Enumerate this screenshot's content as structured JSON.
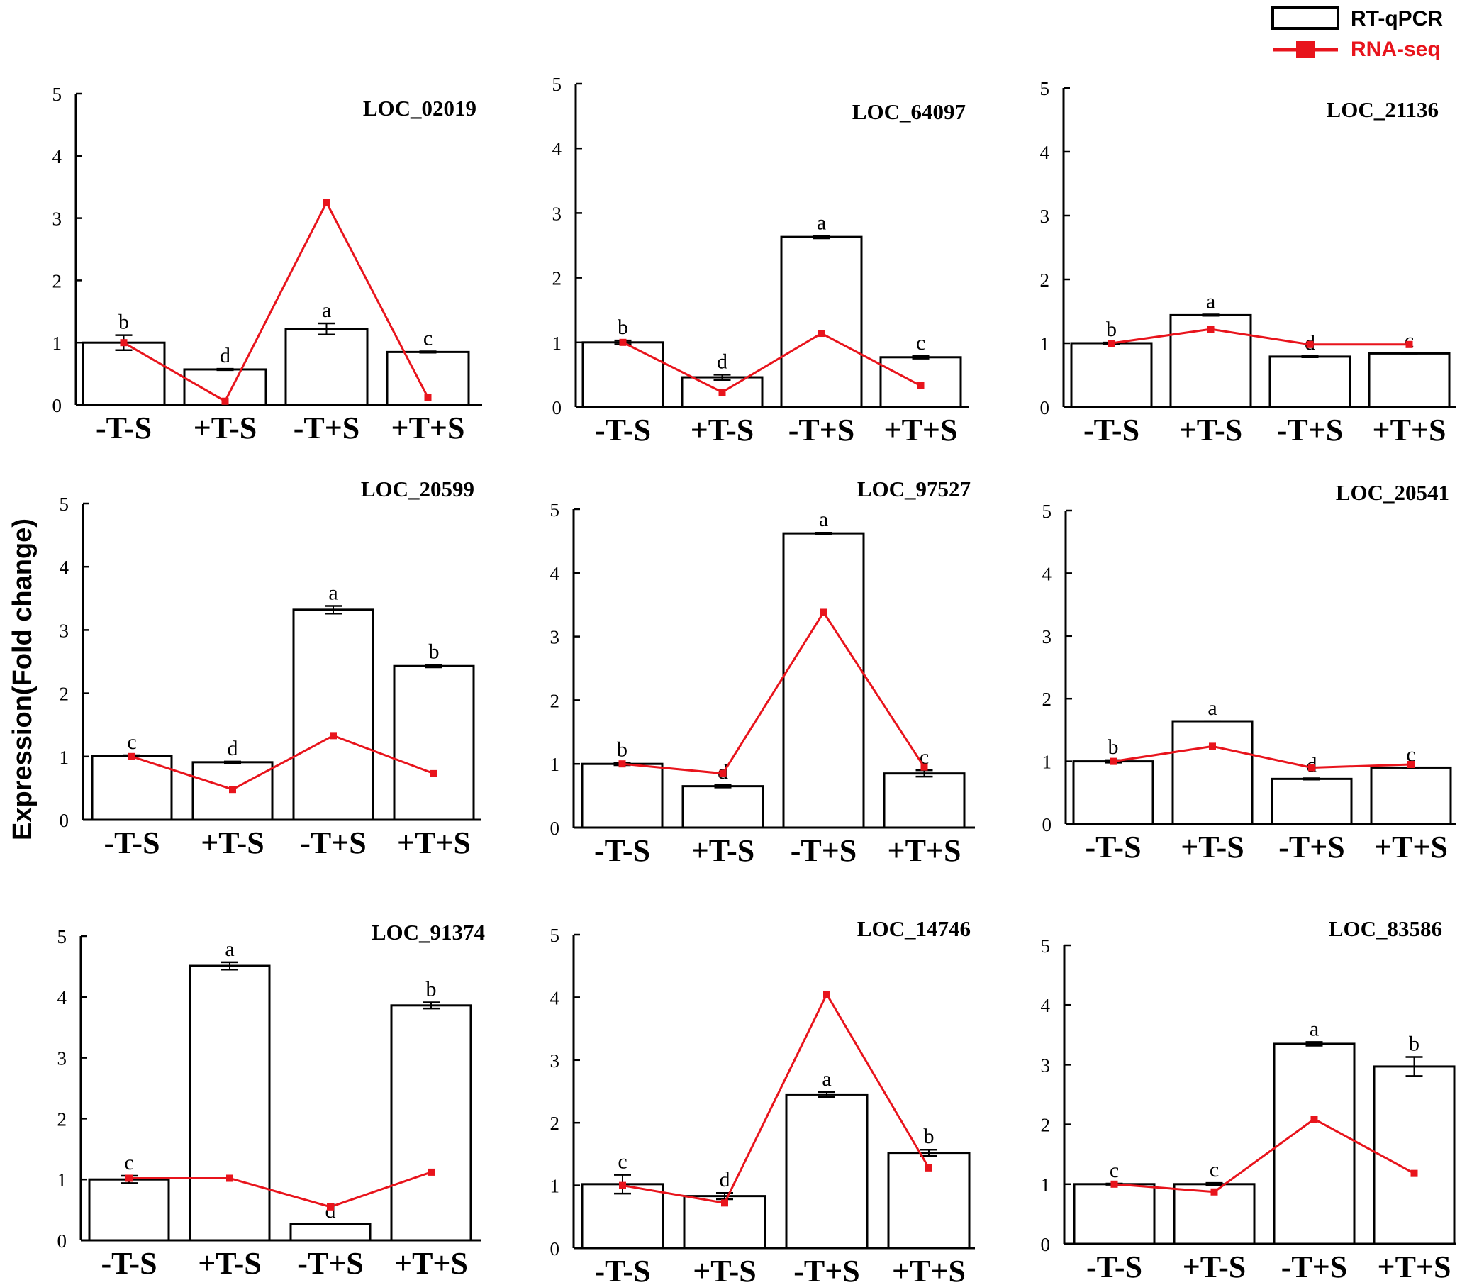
{
  "y_axis_label": "Expression(Fold change)",
  "legend": {
    "bar_label": "RT-qPCR",
    "line_label": "RNA-seq",
    "line_color": "#e8141c",
    "bar_color": "#000000"
  },
  "chart_data": [
    {
      "type": "bar",
      "title": "LOC_02019",
      "categories": [
        "-T-S",
        "+T-S",
        "-T+S",
        "+T+S"
      ],
      "series": [
        {
          "name": "RT-qPCR",
          "values": [
            1.0,
            0.57,
            1.22,
            0.85
          ],
          "errors": [
            0.12,
            0.01,
            0.09,
            0.01
          ],
          "labels": [
            "b",
            "d",
            "a",
            "c"
          ]
        },
        {
          "name": "RNA-seq",
          "values": [
            1.0,
            0.06,
            3.25,
            0.12
          ]
        }
      ],
      "ylim": [
        0,
        5
      ],
      "yticks": [
        0,
        1,
        2,
        3,
        4,
        5
      ]
    },
    {
      "type": "bar",
      "title": "LOC_64097",
      "categories": [
        "-T-S",
        "+T-S",
        "-T+S",
        "+T+S"
      ],
      "series": [
        {
          "name": "RT-qPCR",
          "values": [
            1.0,
            0.46,
            2.63,
            0.77
          ],
          "errors": [
            0.03,
            0.04,
            0.02,
            0.02
          ],
          "labels": [
            "b",
            "d",
            "a",
            "c"
          ]
        },
        {
          "name": "RNA-seq",
          "values": [
            1.0,
            0.23,
            1.14,
            0.33
          ]
        }
      ],
      "ylim": [
        0,
        5
      ],
      "yticks": [
        0,
        1,
        2,
        3,
        4,
        5
      ]
    },
    {
      "type": "bar",
      "title": "LOC_21136",
      "categories": [
        "-T-S",
        "+T-S",
        "-T+S",
        "+T+S"
      ],
      "series": [
        {
          "name": "RT-qPCR",
          "values": [
            1.0,
            1.44,
            0.79,
            0.84
          ],
          "errors": [
            0.01,
            0.01,
            0.01,
            0.0
          ],
          "labels": [
            "b",
            "a",
            "d",
            "c"
          ]
        },
        {
          "name": "RNA-seq",
          "values": [
            1.0,
            1.22,
            0.98,
            0.98
          ]
        }
      ],
      "ylim": [
        0,
        5
      ],
      "yticks": [
        0,
        1,
        2,
        3,
        4,
        5
      ]
    },
    {
      "type": "bar",
      "title": "LOC_20599",
      "categories": [
        "-T-S",
        "+T-S",
        "-T+S",
        "+T+S"
      ],
      "series": [
        {
          "name": "RT-qPCR",
          "values": [
            1.01,
            0.91,
            3.32,
            2.43
          ],
          "errors": [
            0.01,
            0.01,
            0.06,
            0.02
          ],
          "labels": [
            "c",
            "d",
            "a",
            "b"
          ]
        },
        {
          "name": "RNA-seq",
          "values": [
            1.0,
            0.48,
            1.33,
            0.73
          ]
        }
      ],
      "ylim": [
        0,
        5
      ],
      "yticks": [
        0,
        1,
        2,
        3,
        4,
        5
      ]
    },
    {
      "type": "bar",
      "title": "LOC_97527",
      "categories": [
        "-T-S",
        "+T-S",
        "-T+S",
        "+T+S"
      ],
      "series": [
        {
          "name": "RT-qPCR",
          "values": [
            1.0,
            0.65,
            4.62,
            0.85
          ],
          "errors": [
            0.02,
            0.02,
            0.01,
            0.05
          ],
          "labels": [
            "b",
            "d",
            "a",
            "c"
          ]
        },
        {
          "name": "RNA-seq",
          "values": [
            1.0,
            0.85,
            3.38,
            0.95
          ]
        }
      ],
      "ylim": [
        0,
        5
      ],
      "yticks": [
        0,
        1,
        2,
        3,
        4,
        5
      ]
    },
    {
      "type": "bar",
      "title": "LOC_20541",
      "categories": [
        "-T-S",
        "+T-S",
        "-T+S",
        "+T+S"
      ],
      "series": [
        {
          "name": "RT-qPCR",
          "values": [
            1.0,
            1.64,
            0.72,
            0.9
          ],
          "errors": [
            0.02,
            0.0,
            0.01,
            0.0
          ],
          "labels": [
            "b",
            "a",
            "d",
            "c"
          ]
        },
        {
          "name": "RNA-seq",
          "values": [
            1.0,
            1.24,
            0.9,
            0.95
          ]
        }
      ],
      "ylim": [
        0,
        5
      ],
      "yticks": [
        0,
        1,
        2,
        3,
        4,
        5
      ]
    },
    {
      "type": "bar",
      "title": "LOC_91374",
      "categories": [
        "-T-S",
        "+T-S",
        "-T+S",
        "+T+S"
      ],
      "series": [
        {
          "name": "RT-qPCR",
          "values": [
            1.0,
            4.51,
            0.27,
            3.86
          ],
          "errors": [
            0.06,
            0.06,
            0.0,
            0.05
          ],
          "labels": [
            "c",
            "a",
            "d",
            "b"
          ]
        },
        {
          "name": "RNA-seq",
          "values": [
            1.02,
            1.02,
            0.55,
            1.12
          ]
        }
      ],
      "ylim": [
        0,
        5
      ],
      "yticks": [
        0,
        1,
        2,
        3,
        4,
        5
      ]
    },
    {
      "type": "bar",
      "title": "LOC_14746",
      "categories": [
        "-T-S",
        "+T-S",
        "-T+S",
        "+T+S"
      ],
      "series": [
        {
          "name": "RT-qPCR",
          "values": [
            1.02,
            0.83,
            2.45,
            1.52
          ],
          "errors": [
            0.15,
            0.05,
            0.04,
            0.05
          ],
          "labels": [
            "c",
            "d",
            "a",
            "b"
          ]
        },
        {
          "name": "RNA-seq",
          "values": [
            1.0,
            0.72,
            4.05,
            1.28
          ]
        }
      ],
      "ylim": [
        0,
        5
      ],
      "yticks": [
        0,
        1,
        2,
        3,
        4,
        5
      ]
    },
    {
      "type": "bar",
      "title": "LOC_83586",
      "categories": [
        "-T-S",
        "+T-S",
        "-T+S",
        "+T+S"
      ],
      "series": [
        {
          "name": "RT-qPCR",
          "values": [
            1.0,
            1.0,
            3.35,
            2.97
          ],
          "errors": [
            0.01,
            0.02,
            0.03,
            0.16
          ],
          "labels": [
            "c",
            "c",
            "a",
            "b"
          ]
        },
        {
          "name": "RNA-seq",
          "values": [
            1.0,
            0.87,
            2.09,
            1.18
          ]
        }
      ],
      "ylim": [
        0,
        5
      ],
      "yticks": [
        0,
        1,
        2,
        3,
        4,
        5
      ]
    }
  ]
}
